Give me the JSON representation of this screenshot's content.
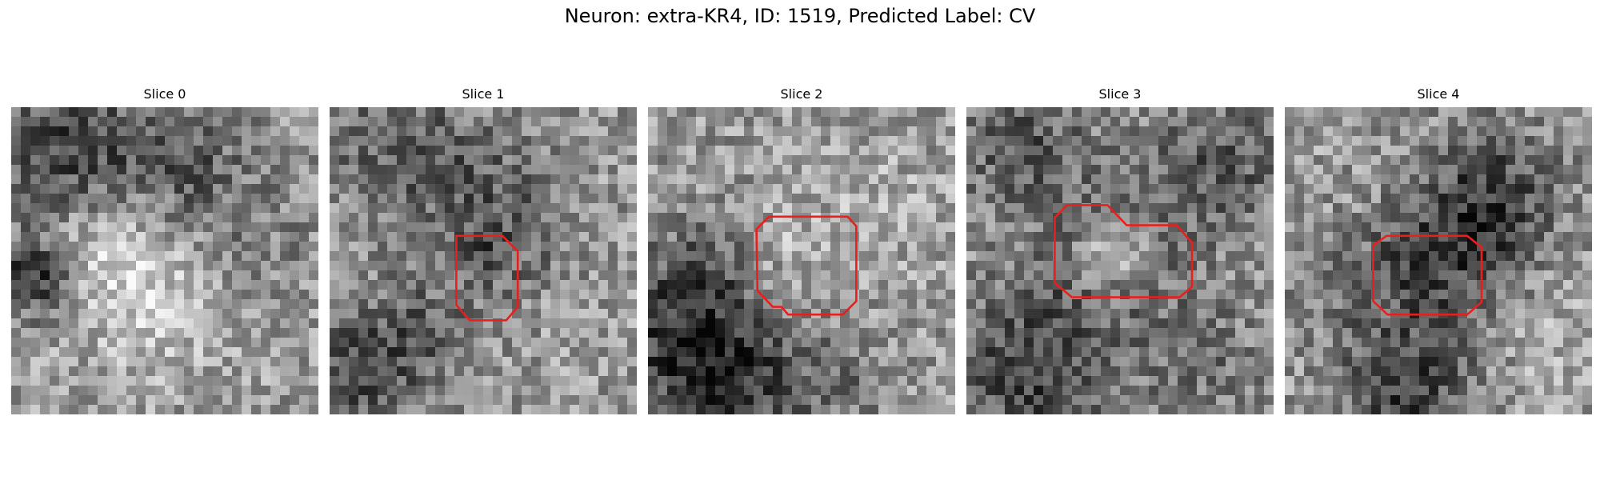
{
  "figure": {
    "title": "Neuron: extra-KR4, ID: 1519, Predicted Label: CV"
  },
  "panels": [
    {
      "title": "Slice 0",
      "has_roi": false
    },
    {
      "title": "Slice 1",
      "has_roi": true
    },
    {
      "title": "Slice 2",
      "has_roi": true
    },
    {
      "title": "Slice 3",
      "has_roi": true
    },
    {
      "title": "Slice 4",
      "has_roi": true
    }
  ],
  "image_grid": {
    "pixels_per_side": 32,
    "colormap": "grayscale"
  },
  "roi_outline_color": "#e8201d"
}
